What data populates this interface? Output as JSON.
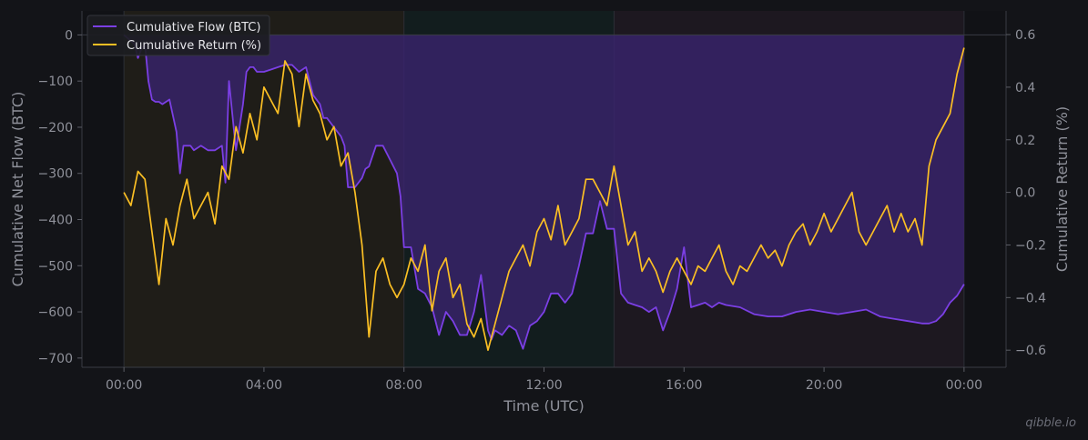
{
  "chart_data": {
    "type": "line",
    "xlabel": "Time (UTC)",
    "ylabel_left": "Cumulative Net Flow (BTC)",
    "ylabel_right": "Cumulative Return (%)",
    "x_unit": "hours (UTC)",
    "xlim": [
      -1.2,
      25.2
    ],
    "ylim_left": [
      -720,
      52
    ],
    "ylim_right": [
      -0.665,
      0.69
    ],
    "x_ticks": [
      {
        "value": 0,
        "label": "00:00"
      },
      {
        "value": 4,
        "label": "04:00"
      },
      {
        "value": 8,
        "label": "08:00"
      },
      {
        "value": 12,
        "label": "12:00"
      },
      {
        "value": 16,
        "label": "16:00"
      },
      {
        "value": 20,
        "label": "20:00"
      },
      {
        "value": 24,
        "label": "00:00"
      }
    ],
    "y_left_ticks": [
      0,
      -100,
      -200,
      -300,
      -400,
      -500,
      -600,
      -700
    ],
    "y_left_tick_labels": [
      "0",
      "−100",
      "−200",
      "−300",
      "−400",
      "−500",
      "−600",
      "−700"
    ],
    "y_right_ticks": [
      0.6,
      0.4,
      0.2,
      0.0,
      -0.2,
      -0.4,
      -0.6
    ],
    "y_right_tick_labels": [
      "0.6",
      "0.4",
      "0.2",
      "0.0",
      "−0.2",
      "−0.4",
      "−0.6"
    ],
    "sessions": [
      {
        "start": 0,
        "end": 8,
        "color": "#1f1d18"
      },
      {
        "start": 8,
        "end": 14,
        "color": "#121d1e"
      },
      {
        "start": 14,
        "end": 24,
        "color": "#1d1820"
      }
    ],
    "legend": {
      "placement": "top-left"
    },
    "series": [
      {
        "name": "Cumulative Flow (BTC)",
        "axis": "left",
        "color": "#7b3fe4",
        "fill": "#3a2470",
        "x": [
          0,
          0.3,
          0.4,
          0.5,
          0.6,
          0.7,
          0.8,
          0.9,
          1.0,
          1.1,
          1.3,
          1.5,
          1.6,
          1.7,
          1.8,
          1.9,
          2.0,
          2.2,
          2.4,
          2.6,
          2.8,
          2.9,
          3.0,
          3.2,
          3.4,
          3.5,
          3.6,
          3.7,
          3.8,
          4.0,
          4.2,
          4.4,
          4.6,
          4.8,
          5.0,
          5.2,
          5.4,
          5.6,
          5.7,
          5.8,
          6.0,
          6.2,
          6.3,
          6.4,
          6.6,
          6.8,
          6.9,
          7.0,
          7.2,
          7.4,
          7.6,
          7.8,
          7.9,
          8.0,
          8.2,
          8.4,
          8.6,
          8.8,
          9.0,
          9.2,
          9.4,
          9.6,
          9.8,
          10.0,
          10.2,
          10.4,
          10.5,
          10.6,
          10.8,
          11.0,
          11.2,
          11.4,
          11.6,
          11.8,
          12.0,
          12.2,
          12.4,
          12.6,
          12.8,
          13.0,
          13.2,
          13.4,
          13.6,
          13.8,
          14.0,
          14.2,
          14.4,
          14.6,
          14.8,
          15.0,
          15.2,
          15.4,
          15.6,
          15.8,
          16.0,
          16.2,
          16.4,
          16.6,
          16.8,
          17.0,
          17.2,
          17.6,
          18.0,
          18.4,
          18.8,
          19.2,
          19.6,
          20.0,
          20.4,
          20.8,
          21.2,
          21.6,
          22.0,
          22.4,
          22.8,
          23.0,
          23.2,
          23.4,
          23.6,
          23.8,
          24.0
        ],
        "values": [
          0,
          -20,
          -50,
          -30,
          -20,
          -100,
          -140,
          -145,
          -145,
          -150,
          -140,
          -210,
          -300,
          -240,
          -240,
          -240,
          -250,
          -240,
          -250,
          -250,
          -240,
          -320,
          -100,
          -250,
          -150,
          -80,
          -70,
          -70,
          -80,
          -80,
          -75,
          -70,
          -65,
          -65,
          -80,
          -70,
          -130,
          -150,
          -180,
          -180,
          -200,
          -220,
          -240,
          -330,
          -330,
          -310,
          -290,
          -285,
          -240,
          -240,
          -270,
          -300,
          -350,
          -460,
          -460,
          -550,
          -560,
          -590,
          -650,
          -600,
          -620,
          -650,
          -650,
          -600,
          -520,
          -640,
          -660,
          -640,
          -650,
          -630,
          -640,
          -680,
          -630,
          -620,
          -600,
          -560,
          -560,
          -580,
          -560,
          -500,
          -430,
          -430,
          -360,
          -420,
          -420,
          -560,
          -580,
          -585,
          -590,
          -600,
          -590,
          -640,
          -600,
          -550,
          -460,
          -590,
          -585,
          -580,
          -590,
          -580,
          -585,
          -590,
          -605,
          -610,
          -610,
          -600,
          -595,
          -600,
          -605,
          -600,
          -595,
          -610,
          -615,
          -620,
          -625,
          -625,
          -620,
          -605,
          -580,
          -565,
          -540
        ]
      },
      {
        "name": "Cumulative Return (%)",
        "axis": "right",
        "color": "#fbbf24",
        "x": [
          0,
          0.2,
          0.4,
          0.6,
          0.8,
          1.0,
          1.2,
          1.4,
          1.6,
          1.8,
          2.0,
          2.2,
          2.4,
          2.6,
          2.8,
          3.0,
          3.2,
          3.4,
          3.6,
          3.8,
          4.0,
          4.2,
          4.4,
          4.6,
          4.8,
          5.0,
          5.2,
          5.4,
          5.6,
          5.8,
          6.0,
          6.2,
          6.4,
          6.6,
          6.8,
          7.0,
          7.2,
          7.4,
          7.6,
          7.8,
          8.0,
          8.2,
          8.4,
          8.6,
          8.8,
          9.0,
          9.2,
          9.4,
          9.6,
          9.8,
          10.0,
          10.2,
          10.4,
          10.6,
          10.8,
          11.0,
          11.2,
          11.4,
          11.6,
          11.8,
          12.0,
          12.2,
          12.4,
          12.6,
          12.8,
          13.0,
          13.2,
          13.4,
          13.6,
          13.8,
          14.0,
          14.2,
          14.4,
          14.6,
          14.8,
          15.0,
          15.2,
          15.4,
          15.6,
          15.8,
          16.0,
          16.2,
          16.4,
          16.6,
          16.8,
          17.0,
          17.2,
          17.4,
          17.6,
          17.8,
          18.0,
          18.2,
          18.4,
          18.6,
          18.8,
          19.0,
          19.2,
          19.4,
          19.6,
          19.8,
          20.0,
          20.2,
          20.4,
          20.6,
          20.8,
          21.0,
          21.2,
          21.4,
          21.6,
          21.8,
          22.0,
          22.2,
          22.4,
          22.6,
          22.8,
          23.0,
          23.2,
          23.4,
          23.6,
          23.8,
          24.0
        ],
        "values": [
          0.0,
          -0.05,
          0.08,
          0.05,
          -0.15,
          -0.35,
          -0.1,
          -0.2,
          -0.05,
          0.05,
          -0.1,
          -0.05,
          0.0,
          -0.12,
          0.1,
          0.05,
          0.25,
          0.15,
          0.3,
          0.2,
          0.4,
          0.35,
          0.3,
          0.5,
          0.45,
          0.25,
          0.45,
          0.35,
          0.3,
          0.2,
          0.25,
          0.1,
          0.15,
          0.0,
          -0.2,
          -0.55,
          -0.3,
          -0.25,
          -0.35,
          -0.4,
          -0.35,
          -0.25,
          -0.3,
          -0.2,
          -0.45,
          -0.3,
          -0.25,
          -0.4,
          -0.35,
          -0.5,
          -0.55,
          -0.48,
          -0.6,
          -0.5,
          -0.4,
          -0.3,
          -0.25,
          -0.2,
          -0.28,
          -0.15,
          -0.1,
          -0.18,
          -0.05,
          -0.2,
          -0.15,
          -0.1,
          0.05,
          0.05,
          0.0,
          -0.05,
          0.1,
          -0.05,
          -0.2,
          -0.15,
          -0.3,
          -0.25,
          -0.3,
          -0.38,
          -0.3,
          -0.25,
          -0.3,
          -0.35,
          -0.28,
          -0.3,
          -0.25,
          -0.2,
          -0.3,
          -0.35,
          -0.28,
          -0.3,
          -0.25,
          -0.2,
          -0.25,
          -0.22,
          -0.28,
          -0.2,
          -0.15,
          -0.12,
          -0.2,
          -0.15,
          -0.08,
          -0.15,
          -0.1,
          -0.05,
          0.0,
          -0.15,
          -0.2,
          -0.15,
          -0.1,
          -0.05,
          -0.15,
          -0.08,
          -0.15,
          -0.1,
          -0.2,
          0.1,
          0.2,
          0.25,
          0.3,
          0.45,
          0.55
        ]
      }
    ]
  },
  "watermark": "qibble.io"
}
